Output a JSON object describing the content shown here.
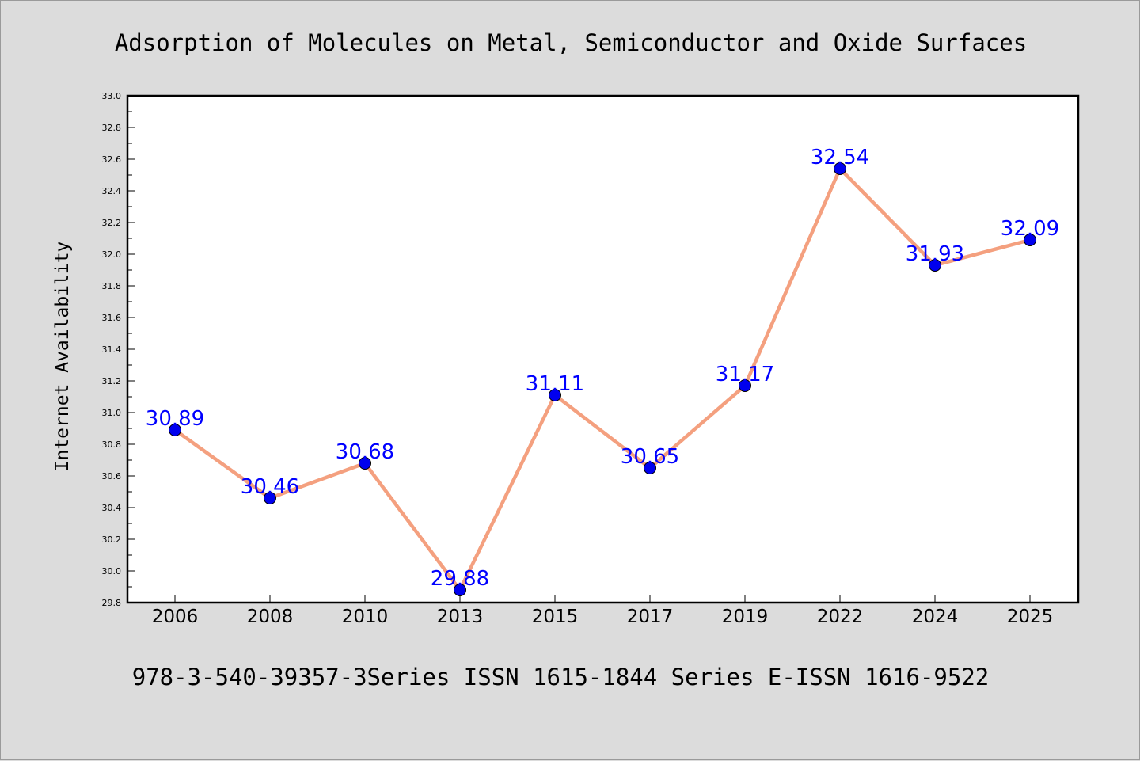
{
  "chart_data": {
    "type": "line",
    "title": "Adsorption of Molecules on Metal, Semiconductor and Oxide Surfaces",
    "subtitle": "978-3-540-39357-3Series ISSN 1615-1844 Series E-ISSN 1616-9522",
    "xlabel": "",
    "ylabel": "Internet Availability",
    "categories": [
      "2006",
      "2008",
      "2010",
      "2013",
      "2015",
      "2017",
      "2019",
      "2022",
      "2024",
      "2025"
    ],
    "series": [
      {
        "values": [
          30.89,
          30.46,
          30.68,
          29.88,
          31.11,
          30.65,
          31.17,
          32.54,
          31.93,
          32.09
        ],
        "labels": [
          "30.89",
          "30.46",
          "30.68",
          "29.88",
          "31.11",
          "30.65",
          "31.17",
          "32.54",
          "31.93",
          "32.09"
        ],
        "line_color": "#f4a07f",
        "marker_color": "#0000ee",
        "label_color": "#0000ff"
      }
    ],
    "ylim": [
      29.8,
      33.0
    ],
    "yticks": [
      "29.8",
      "30.0",
      "30.2",
      "30.4",
      "30.6",
      "30.8",
      "31.0",
      "31.2",
      "31.4",
      "31.6",
      "31.8",
      "32.0",
      "32.2",
      "32.4",
      "32.6",
      "32.8",
      "33.0"
    ],
    "grid": false,
    "legend": "none",
    "background": "#dcdcdc",
    "plot_background": "#ffffff"
  }
}
